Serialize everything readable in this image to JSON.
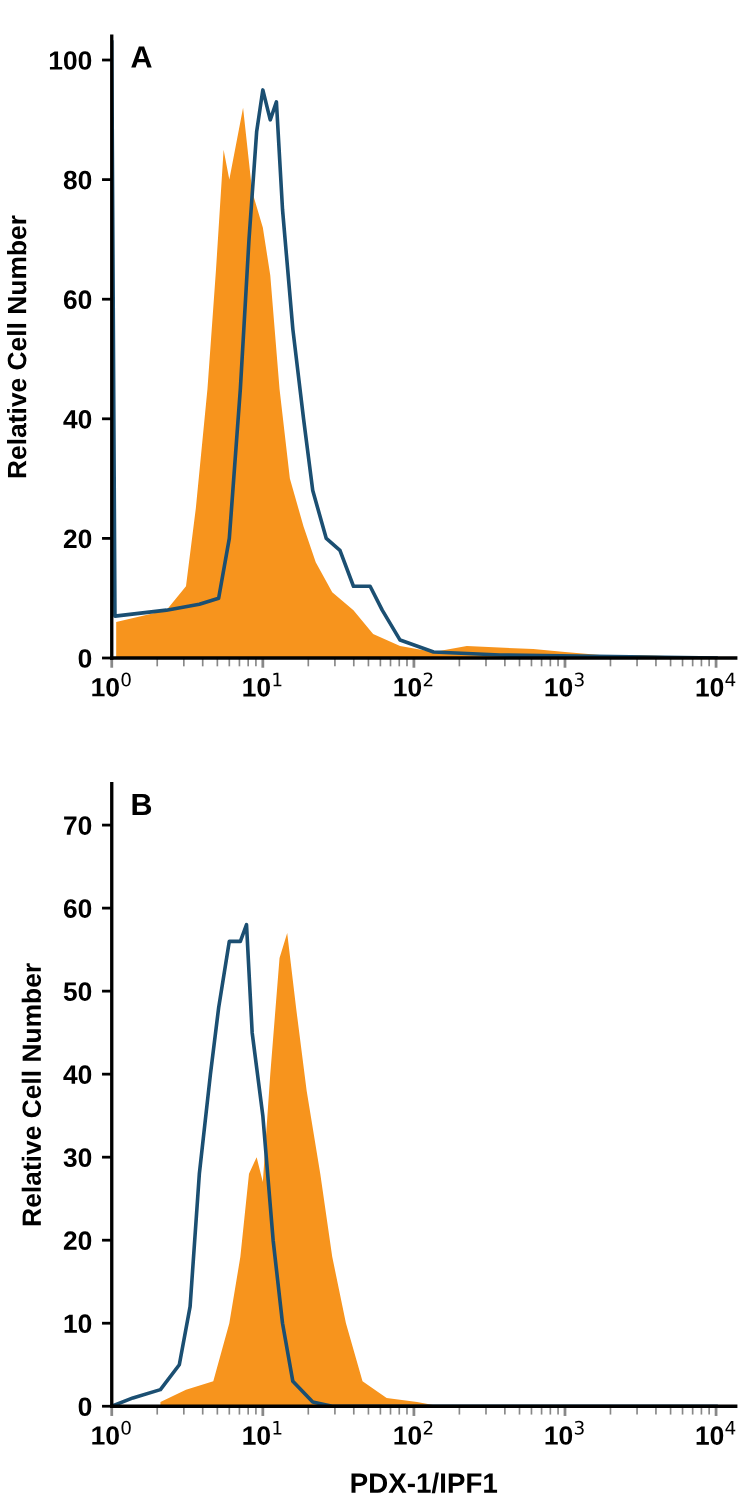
{
  "chart_data": [
    {
      "type": "area",
      "title": "A",
      "ylabel": "Relative Cell Number",
      "log": "x",
      "xlim": [
        1,
        13500
      ],
      "ylim": [
        0,
        104
      ],
      "xticks": [
        {
          "value": 1,
          "label": "10$^{0}$"
        },
        {
          "value": 10,
          "label": "10$^{1}$"
        },
        {
          "value": 100,
          "label": "10$^{2}$"
        },
        {
          "value": 1000,
          "label": "10$^{3}$"
        },
        {
          "value": 10000,
          "label": "10$^{4}$"
        }
      ],
      "yticks": [
        0,
        20,
        40,
        60,
        80,
        100
      ],
      "grid": false,
      "legend": false,
      "series": [
        {
          "color": "#f7941d",
          "x": [
            1.07,
            2.3,
            3.1,
            3.6,
            4.3,
            4.9,
            5.5,
            6.0,
            7.4,
            8.5,
            10,
            11.2,
            12.9,
            15.1,
            18.6,
            22.4,
            28.8,
            39.8,
            53.7,
            81,
            135,
            224,
            617,
            1000,
            1700,
            3090,
            10000
          ],
          "values": [
            6,
            8,
            12,
            25,
            45,
            65,
            85,
            80,
            92,
            78,
            72,
            64,
            45,
            30,
            22,
            16,
            11,
            8,
            4,
            2,
            1,
            2,
            1.5,
            1,
            0.5,
            0.5,
            0
          ]
        },
        {
          "type": "line",
          "color": "#1b4f72",
          "x": [
            1,
            1.05,
            2.3,
            3.8,
            5.1,
            6.0,
            7.1,
            8.1,
            9.1,
            10,
            11.2,
            12.3,
            13.5,
            15.8,
            18.6,
            21.4,
            26.3,
            32.4,
            39.8,
            51.3,
            61.7,
            81,
            135,
            372,
            10000
          ],
          "values": [
            103,
            7,
            8,
            9,
            10,
            20,
            45,
            70,
            88,
            95,
            90,
            93,
            75,
            55,
            40,
            28,
            20,
            18,
            12,
            12,
            8,
            3,
            1,
            0.5,
            0
          ]
        }
      ]
    },
    {
      "type": "area",
      "title": "B",
      "xlabel": "PDX-1/IPF1",
      "ylabel": "Relative Cell Number",
      "log": "x",
      "xlim": [
        1,
        13500
      ],
      "ylim": [
        0,
        75
      ],
      "xticks": [
        {
          "value": 1,
          "label": "10$^{0}$"
        },
        {
          "value": 10,
          "label": "10$^{1}$"
        },
        {
          "value": 100,
          "label": "10$^{2}$"
        },
        {
          "value": 1000,
          "label": "10$^{3}$"
        },
        {
          "value": 10000,
          "label": "10$^{4}$"
        }
      ],
      "yticks": [
        0,
        10,
        20,
        30,
        40,
        50,
        60,
        70
      ],
      "grid": false,
      "legend": false,
      "series": [
        {
          "color": "#f7941d",
          "x": [
            2.1,
            3.1,
            4.7,
            6.0,
            7.1,
            8.1,
            9.1,
            10,
            11.2,
            12.9,
            14.5,
            16.6,
            19.5,
            24,
            28.8,
            35.5,
            45.7,
            66,
            105,
            148,
            10000
          ],
          "values": [
            0.5,
            2,
            3,
            10,
            18,
            28,
            30,
            27,
            40,
            54,
            57,
            48,
            38,
            28,
            18,
            10,
            3,
            1,
            0.5,
            0,
            0
          ]
        },
        {
          "type": "line",
          "color": "#1b4f72",
          "x": [
            1,
            1.38,
            2.1,
            2.8,
            3.3,
            3.8,
            4.5,
            5.1,
            6.0,
            7.1,
            7.8,
            8.5,
            10,
            11.7,
            13.5,
            15.8,
            21.4,
            28.8,
            10000
          ],
          "values": [
            0,
            1,
            2,
            5,
            12,
            28,
            40,
            48,
            56,
            56,
            58,
            45,
            35,
            20,
            10,
            3,
            0.5,
            0,
            0
          ]
        }
      ]
    }
  ]
}
